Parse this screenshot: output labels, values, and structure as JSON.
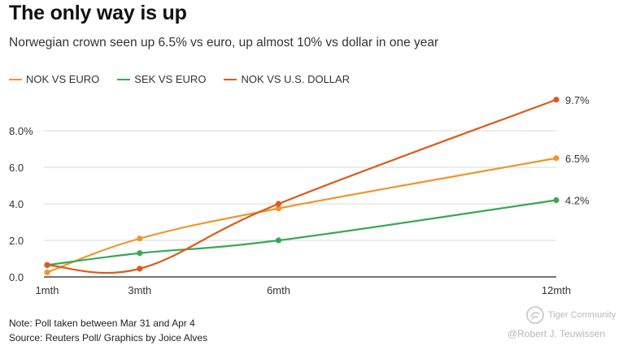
{
  "header": {
    "title": "The only way is up",
    "subtitle": "Norwegian crown seen up 6.5% vs euro, up almost 10% vs dollar in one year"
  },
  "footer": {
    "note": "Note: Poll taken between Mar 31 and Apr 4",
    "source": "Source: Reuters Poll/ Graphics by Joice Alves"
  },
  "watermark": {
    "logo_text": "Tiger Community",
    "handle": "@Robert J. Teuwissen"
  },
  "colors": {
    "nok_euro": "#f0962e",
    "sek_euro": "#3ba755",
    "nok_usd": "#db5b1e",
    "grid": "#d9d9d9",
    "axis": "#222222"
  },
  "chart_data": {
    "type": "line",
    "title": "The only way is up",
    "subtitle": "Norwegian crown seen up 6.5% vs euro, up almost 10% vs dollar in one year",
    "categories": [
      "1mth",
      "3mth",
      "6mth",
      "12mth"
    ],
    "xlabel": "",
    "ylabel": "",
    "ylim": [
      0,
      10
    ],
    "yticks": [
      0,
      2,
      4,
      6,
      8
    ],
    "ytick_labels": [
      "0.0",
      "2.0",
      "4.0",
      "6.0",
      "8.0%"
    ],
    "grid": true,
    "legend_position": "top-left",
    "series": [
      {
        "name": "NOK VS EURO",
        "color": "#f0962e",
        "values": [
          0.25,
          2.1,
          3.75,
          6.5
        ],
        "end_label": "6.5%"
      },
      {
        "name": "SEK VS EURO",
        "color": "#3ba755",
        "values": [
          0.65,
          1.3,
          2.0,
          4.2
        ],
        "end_label": "4.2%"
      },
      {
        "name": "NOK VS U.S. DOLLAR",
        "color": "#db5b1e",
        "values": [
          0.65,
          0.45,
          4.0,
          9.7
        ],
        "end_label": "9.7%"
      }
    ]
  }
}
